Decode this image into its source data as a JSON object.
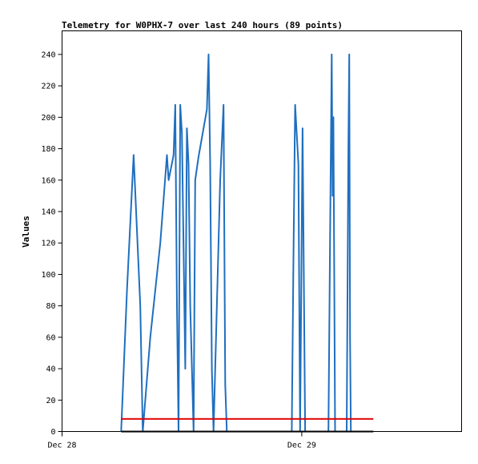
{
  "chart_data": {
    "type": "line",
    "title": "Telemetry for W0PHX-7 over last 240 hours (89 points)",
    "xlabel": "",
    "ylabel": "Values",
    "ylim": [
      0,
      255
    ],
    "yticks": [
      0,
      20,
      40,
      60,
      80,
      100,
      120,
      140,
      160,
      180,
      200,
      220,
      240
    ],
    "xlim": [
      0,
      240
    ],
    "x_unit": "hours",
    "xticks": [
      {
        "x": 0,
        "label": "Dec 28"
      },
      {
        "x": 144,
        "label": "Dec 29"
      }
    ],
    "grid": false,
    "legend": "none",
    "series": [
      {
        "color": "#1f6fbf",
        "points": [
          [
            35.5,
            0
          ],
          [
            39,
            90
          ],
          [
            43,
            176
          ],
          [
            47,
            80
          ],
          [
            48.5,
            0
          ],
          [
            53,
            60
          ],
          [
            59,
            120
          ],
          [
            63,
            176
          ],
          [
            64,
            160
          ],
          [
            67,
            176
          ],
          [
            68,
            208
          ],
          [
            69,
            80
          ],
          [
            70,
            0
          ],
          [
            71,
            208
          ],
          [
            72,
            190
          ],
          [
            74,
            40
          ],
          [
            75,
            193
          ],
          [
            76,
            170
          ],
          [
            77,
            80
          ],
          [
            79,
            0
          ],
          [
            80,
            160
          ],
          [
            82,
            175
          ],
          [
            87,
            205
          ],
          [
            88,
            240
          ],
          [
            89,
            170
          ],
          [
            90,
            40
          ],
          [
            91,
            0
          ],
          [
            95,
            160
          ],
          [
            97,
            208
          ],
          [
            98,
            30
          ],
          [
            99,
            0
          ],
          [
            138,
            0
          ],
          [
            139,
            110
          ],
          [
            140,
            208
          ],
          [
            142,
            170
          ],
          [
            143,
            0
          ],
          [
            144.5,
            193
          ],
          [
            146,
            0
          ],
          [
            160,
            0
          ],
          [
            161,
            120
          ],
          [
            162,
            240
          ],
          [
            162.5,
            150
          ],
          [
            163,
            200
          ],
          [
            164,
            0
          ],
          [
            171,
            0
          ],
          [
            172,
            180
          ],
          [
            172.5,
            240
          ],
          [
            173,
            60
          ],
          [
            173.5,
            0
          ]
        ]
      },
      {
        "color": "#e00000",
        "points": [
          [
            35.5,
            8
          ],
          [
            187,
            8
          ]
        ]
      },
      {
        "color": "#000000",
        "points": [
          [
            35.5,
            0
          ],
          [
            187,
            0
          ]
        ]
      }
    ]
  }
}
